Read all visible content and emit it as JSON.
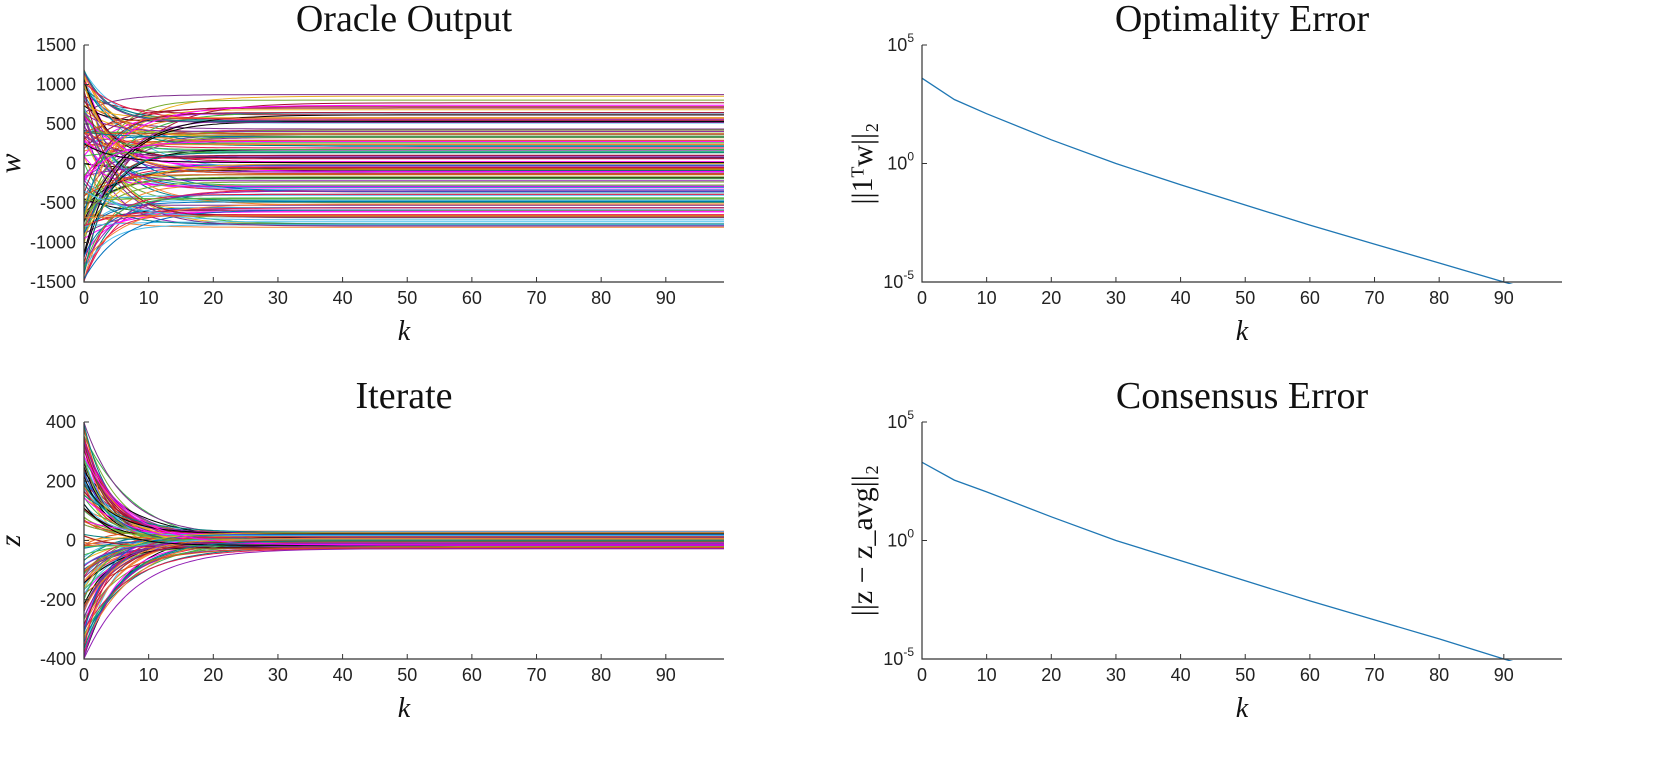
{
  "chart_data": [
    {
      "id": "oracle",
      "type": "line",
      "title": "Oracle Output",
      "xlabel": "k",
      "ylabel": "w",
      "xlim": [
        0,
        99
      ],
      "ylim": [
        -1500,
        1500
      ],
      "x_ticks": [
        0,
        10,
        20,
        30,
        40,
        50,
        60,
        70,
        80,
        90
      ],
      "y_ticks": [
        1500,
        1000,
        500,
        0,
        -500,
        -1000,
        -1500
      ],
      "y_tick_labels": [
        "1500",
        "1000",
        "500",
        "0",
        "-500",
        "-1000",
        "-1500"
      ],
      "scale": "linear",
      "grid": false,
      "legend": "none",
      "description_of_data": "many series decaying from initial values toward constant limits",
      "series_generator": {
        "count": 140,
        "initial_range": [
          -1500,
          1200
        ],
        "final_range": [
          -820,
          880
        ],
        "decay_rate": 0.22
      }
    },
    {
      "id": "optimality",
      "type": "line",
      "title": "Optimality Error",
      "xlabel": "k",
      "ylabel": "||1ᵀw||₂",
      "xlim": [
        0,
        99
      ],
      "ylim_log10": [
        -5,
        5
      ],
      "x_ticks": [
        0,
        10,
        20,
        30,
        40,
        50,
        60,
        70,
        80,
        90
      ],
      "y_ticks_log10": [
        5,
        0,
        -5
      ],
      "scale": "log",
      "grid": false,
      "legend": "none",
      "series": [
        {
          "color": "#1f77b4",
          "x": [
            0,
            5,
            10,
            20,
            30,
            40,
            50,
            60,
            70,
            80,
            90,
            99
          ],
          "log10_y": [
            3.6,
            2.7,
            2.1,
            1.0,
            0.0,
            -0.9,
            -1.75,
            -2.6,
            -3.4,
            -4.2,
            -5.0,
            -5.7
          ]
        }
      ]
    },
    {
      "id": "iterate",
      "type": "line",
      "title": "Iterate",
      "xlabel": "k",
      "ylabel": "z",
      "xlim": [
        0,
        99
      ],
      "ylim": [
        -400,
        400
      ],
      "x_ticks": [
        0,
        10,
        20,
        30,
        40,
        50,
        60,
        70,
        80,
        90
      ],
      "y_ticks": [
        400,
        200,
        0,
        -200,
        -400
      ],
      "y_tick_labels": [
        "400",
        "200",
        "0",
        "-200",
        "-400"
      ],
      "scale": "linear",
      "grid": false,
      "legend": "none",
      "series_generator": {
        "count": 140,
        "initial_range": [
          -400,
          400
        ],
        "final_range": [
          -28,
          32
        ],
        "decay_rate": 0.2
      }
    },
    {
      "id": "consensus",
      "type": "line",
      "title": "Consensus Error",
      "xlabel": "k",
      "ylabel": "||z − z_avg||₂",
      "xlim": [
        0,
        99
      ],
      "ylim_log10": [
        -5,
        5
      ],
      "x_ticks": [
        0,
        10,
        20,
        30,
        40,
        50,
        60,
        70,
        80,
        90
      ],
      "y_ticks_log10": [
        5,
        0,
        -5
      ],
      "scale": "log",
      "grid": false,
      "legend": "none",
      "series": [
        {
          "color": "#1f77b4",
          "x": [
            0,
            5,
            10,
            20,
            30,
            40,
            50,
            60,
            70,
            80,
            90,
            99
          ],
          "log10_y": [
            3.3,
            2.55,
            2.05,
            1.0,
            0.0,
            -0.85,
            -1.7,
            -2.55,
            -3.35,
            -4.15,
            -5.0,
            -5.7
          ]
        }
      ]
    }
  ],
  "palette": [
    "#0072BD",
    "#D95319",
    "#EDB120",
    "#7E2F8E",
    "#77AC30",
    "#4DBEEE",
    "#A2142F",
    "#e6194b",
    "#3cb44b",
    "#911eb4",
    "#f58231",
    "#000000",
    "#ff00ff",
    "#008080"
  ]
}
